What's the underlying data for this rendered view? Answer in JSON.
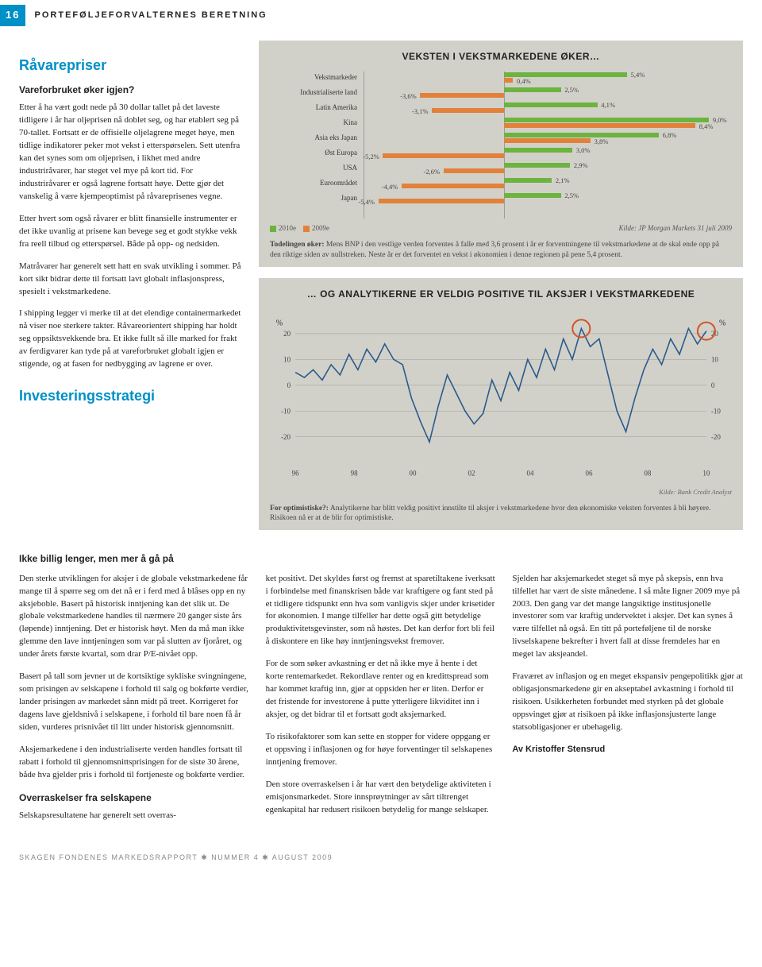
{
  "page_number": "16",
  "section_header": "PORTEFØLJEFORVALTERNES BERETNING",
  "h1": "Råvarepriser",
  "sub1": "Vareforbruket øker igjen?",
  "p_intro_1": "Etter å ha vært godt nede på 30 dollar tallet på det laveste tidligere i år har oljeprisen nå doblet seg, og har etablert seg på 70-tallet. Fortsatt er de offisielle oljelagrene meget høye, men tidlige indikatorer peker mot vekst i etterspørselen. Sett utenfra kan det synes som om oljeprisen, i likhet med andre industriråvarer, har steget vel mye på kort tid. For industriråvarer er også lagrene fortsatt høye. Dette gjør det vanskelig å være kjempeoptimist på råvareprisenes vegne.",
  "p_intro_2": "Etter hvert som også råvarer er blitt finansielle instrumenter er det ikke uvanlig at prisene kan bevege seg et godt stykke vekk fra reell tilbud og etterspørsel. Både på opp- og nedsiden.",
  "p_intro_3": "Matråvarer har generelt sett hatt en svak utvikling i sommer. På kort sikt bidrar dette til fortsatt lavt globalt inflasjonspress, spesielt i vekstmarkedene.",
  "p_intro_4": "I shipping legger vi merke til at det elendige containermarkedet nå viser noe sterkere takter. Råvareorientert shipping har holdt seg oppsiktsvekkende bra. Et ikke fullt så ille marked for frakt av ferdigvarer kan tyde på at vareforbruket globalt igjen er stigende, og at fasen for nedbygging av lagrene er over.",
  "h2_invest": "Investeringsstrategi",
  "sub2": "Ikke billig lenger, men mer å gå på",
  "body_col1_p1": "Den sterke utviklingen for aksjer i de globale vekstmarkedene får mange til å spørre seg om det nå er i ferd med å blåses opp en ny aksjeboble. Basert på historisk inntjening kan det slik ut. De globale vekstmarkedene handles til nærmere 20 ganger siste års (løpende) inntjening. Det er historisk høyt. Men da må man ikke glemme den lave inntjeningen som var på slutten av fjoråret, og under årets første kvartal, som drar P/E-nivået opp.",
  "body_col1_p2": "Basert på tall som jevner ut de kortsiktige sykliske svingningene, som prisingen av selskapene i forhold til salg og bokførte verdier, lander prisingen av markedet sånn midt på treet. Korrigeret for dagens lave gjeldsnivå i selskapene, i forhold til bare noen få år siden, vurderes prisnivået til litt under historisk gjennomsnitt.",
  "body_col1_p3": "Aksjemarkedene i den industrialiserte verden handles fortsatt til rabatt i forhold til gjennomsnittsprisingen for de siste 30 årene, både hva gjelder pris i forhold til fortjeneste og bokførte verdier.",
  "body_col1_sub": "Overraskelser fra selskapene",
  "body_col1_p4": "Selskapsresultatene har generelt sett overras-",
  "body_col2_p1": "ket positivt. Det skyldes først og fremst at sparetiltakene iverksatt i forbindelse med finanskrisen både var kraftigere og fant sted på et tidligere tidspunkt enn hva som vanligvis skjer under krisetider for økonomien. I mange tilfeller har dette også gitt betydelige produktivitetsgevinster, som nå høstes. Det kan derfor fort bli feil å diskontere en like høy inntjeningsvekst fremover.",
  "body_col2_p2": "For de som søker avkastning er det nå ikke mye å hente i det korte rentemarkedet. Rekordlave renter og en kredittspread som har kommet kraftig inn, gjør at oppsiden her er liten. Derfor er det fristende for investorene å putte ytterligere likviditet inn i aksjer, og det bidrar til et fortsatt godt aksjemarked.",
  "body_col2_p3": "To risikofaktorer som kan sette en stopper for videre oppgang er et oppsving i inflasjonen og for høye forventinger til selskapenes inntjening fremover.",
  "body_col2_p4": "Den store overraskelsen i år har vært den betydelige aktiviteten i emisjonsmarkedet. Store innsprøytninger av sårt tiltrenget egenkapital har redusert risikoen betydelig for mange selskaper.",
  "body_col3_p1": "Sjelden har aksjemarkedet steget så mye på skepsis, enn hva tilfellet har vært de siste månedene. I så måte ligner 2009 mye på 2003. Den gang var det mange langsiktige institusjonelle investorer som var kraftig undervektet i aksjer. Det kan synes å være tilfellet nå også. En titt på porteføljene til de norske livselskapene bekrefter i hvert fall at disse fremdeles har en meget lav aksjeandel.",
  "body_col3_p2": "Fraværet av inflasjon og en meget ekspansiv pengepolitikk gjør at obligasjonsmarkedene gir en akseptabel avkastning i forhold til risikoen. Usikkerheten forbundet med styrken på det globale oppsvinget gjør at risikoen på ikke inflasjonsjusterte lange statsobligasjoner er ubehagelig.",
  "author": "Av Kristoffer Stensrud",
  "footer": "SKAGEN FONDENES MARKEDSRAPPORT ✱ NUMMER 4 ✱ AUGUST 2009",
  "chart1": {
    "title": "VEKSTEN I VEKSTMARKEDENE ØKER…",
    "categories": [
      "Vekstmarkeder",
      "Industrialiserte land",
      "Latin Amerika",
      "Kina",
      "Asia eks Japan",
      "Øst Europa",
      "USA",
      "Euroområdet",
      "Japan"
    ],
    "values_2010e": [
      5.4,
      2.5,
      4.1,
      9.0,
      6.8,
      3.0,
      2.9,
      2.1,
      2.5
    ],
    "values_2009e": [
      0.4,
      -3.6,
      -3.1,
      8.4,
      3.8,
      -5.2,
      -2.6,
      -4.4,
      -5.4
    ],
    "legend_2010e": "2010e",
    "legend_2009e": "2009e",
    "color_2010e": "#6cb33f",
    "color_2009e": "#e2813b",
    "source": "Kilde: JP Morgan Markets 31 juli 2009",
    "caption_lead": "Todelingen øker:",
    "caption_body": " Mens BNP i den vestlige verden forventes å falle med 3,6 prosent i år er forventningene til vekstmarkedene at de skal ende opp på den riktige siden av nullstreken. Neste år er det forventet en vekst i økonomien i denne regionen på pene 5,4 prosent."
  },
  "chart2": {
    "title": "… OG ANALYTIKERNE ER VELDIG POSITIVE TIL AKSJER I VEKSTMARKEDENE",
    "ylabel": "%",
    "ylim": [
      -30,
      25
    ],
    "yticks": [
      -20,
      -10,
      0,
      10,
      20
    ],
    "xticks": [
      "96",
      "98",
      "00",
      "02",
      "04",
      "06",
      "08",
      "10"
    ],
    "line_color": "#2a5b8d",
    "background": "#d2d1c9",
    "grid_color": "rgba(0,0,0,0.25)",
    "circle_color": "#d1552a",
    "source": "Kilde: Bank Credit Analyst",
    "caption_lead": "For optimistiske?:",
    "caption_body": " Analytikerne har blitt veldig positivt innstilte til aksjer i vekstmarkedene hvor den økonomiske veksten forventes å bli høyere. Risikoen nå er at de blir for optimistiske.",
    "series": [
      5,
      3,
      6,
      2,
      8,
      4,
      12,
      6,
      14,
      9,
      16,
      10,
      8,
      -5,
      -14,
      -22,
      -8,
      4,
      -3,
      -10,
      -15,
      -11,
      2,
      -6,
      5,
      -2,
      10,
      3,
      14,
      6,
      18,
      10,
      22,
      15,
      18,
      4,
      -10,
      -18,
      -5,
      6,
      14,
      8,
      18,
      12,
      22,
      16,
      21
    ]
  }
}
